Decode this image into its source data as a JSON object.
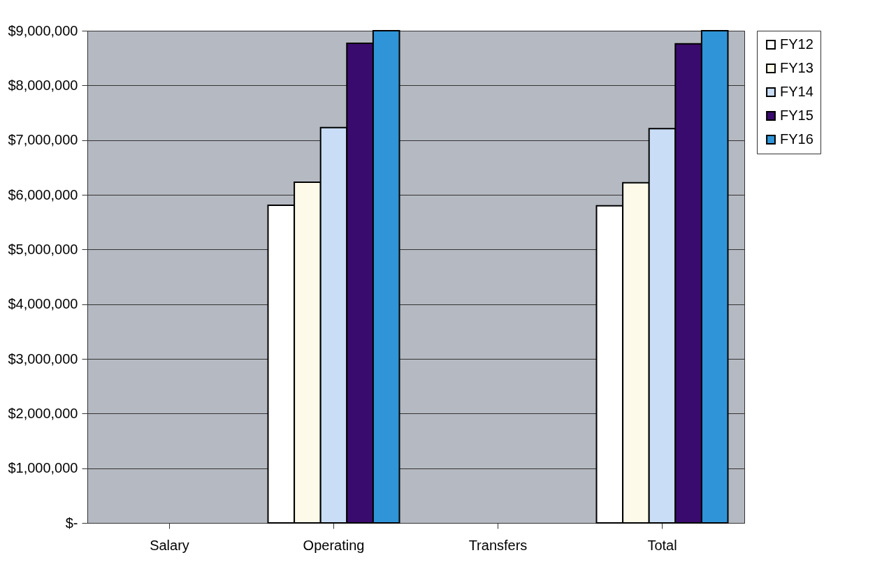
{
  "chart_data": {
    "type": "bar",
    "categories": [
      "Salary",
      "Operating",
      "Transfers",
      "Total"
    ],
    "series": [
      {
        "name": "FY12",
        "color": "#ffffff",
        "values": [
          null,
          5810000,
          null,
          5800000
        ]
      },
      {
        "name": "FY13",
        "color": "#fdfaea",
        "values": [
          null,
          6230000,
          null,
          6220000
        ]
      },
      {
        "name": "FY14",
        "color": "#c9ddf6",
        "values": [
          null,
          7230000,
          null,
          7210000
        ]
      },
      {
        "name": "FY15",
        "color": "#3a0b6e",
        "values": [
          null,
          8770000,
          null,
          8760000
        ]
      },
      {
        "name": "FY16",
        "color": "#2f95d8",
        "values": [
          null,
          9000000,
          null,
          9000000
        ]
      }
    ],
    "ylim": [
      0,
      9000000
    ],
    "yticks": [
      {
        "value": 0,
        "label": "$-"
      },
      {
        "value": 1000000,
        "label": "$1,000,000"
      },
      {
        "value": 2000000,
        "label": "$2,000,000"
      },
      {
        "value": 3000000,
        "label": "$3,000,000"
      },
      {
        "value": 4000000,
        "label": "$4,000,000"
      },
      {
        "value": 5000000,
        "label": "$5,000,000"
      },
      {
        "value": 6000000,
        "label": "$6,000,000"
      },
      {
        "value": 7000000,
        "label": "$7,000,000"
      },
      {
        "value": 8000000,
        "label": "$8,000,000"
      },
      {
        "value": 9000000,
        "label": "$9,000,000"
      }
    ],
    "grid": "y",
    "legend": "right"
  }
}
